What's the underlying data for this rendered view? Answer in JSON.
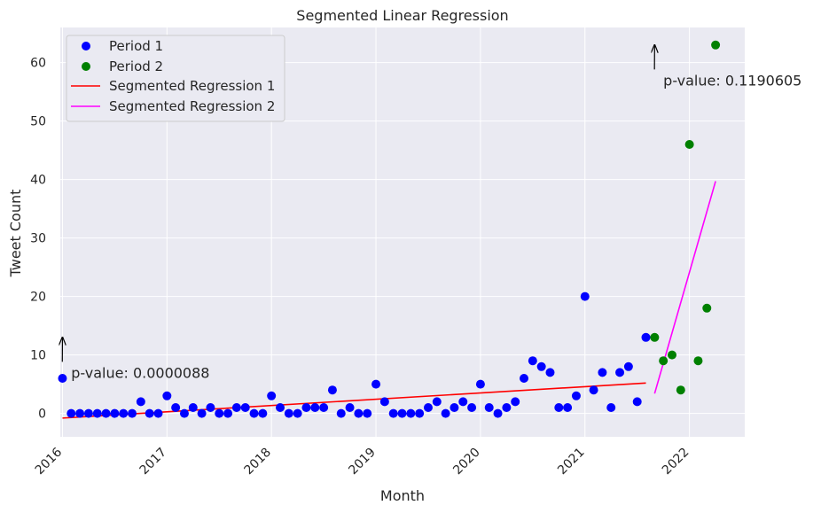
{
  "chart_data": {
    "type": "scatter",
    "title": "Segmented Linear Regression",
    "xlabel": "Month",
    "ylabel": "Tweet Count",
    "xlim": [
      "2015-12",
      "2022-07"
    ],
    "ylim": [
      -4,
      66
    ],
    "x_ticks": [
      "2016",
      "2017",
      "2018",
      "2019",
      "2020",
      "2021",
      "2022"
    ],
    "y_ticks": [
      0,
      10,
      20,
      30,
      40,
      50,
      60
    ],
    "grid": true,
    "legend_position": "top-left",
    "series": [
      {
        "name": "Period 1",
        "kind": "scatter",
        "color": "#0000ff",
        "start": "2016-01",
        "values": [
          6,
          0,
          0,
          0,
          0,
          0,
          0,
          0,
          0,
          2,
          0,
          0,
          3,
          1,
          0,
          1,
          0,
          1,
          0,
          0,
          1,
          1,
          0,
          0,
          3,
          1,
          0,
          0,
          1,
          1,
          1,
          4,
          0,
          1,
          0,
          0,
          5,
          2,
          0,
          0,
          0,
          0,
          1,
          2,
          0,
          1,
          2,
          1,
          5,
          1,
          0,
          1,
          2,
          6,
          9,
          8,
          7,
          1,
          1,
          3,
          20,
          4,
          7,
          1,
          7,
          8,
          2,
          13
        ]
      },
      {
        "name": "Period 2",
        "kind": "scatter",
        "color": "#008000",
        "points": [
          {
            "x": "2021-09",
            "y": 13
          },
          {
            "x": "2021-10",
            "y": 9
          },
          {
            "x": "2021-11",
            "y": 10
          },
          {
            "x": "2021-12",
            "y": 4
          },
          {
            "x": "2022-01",
            "y": 46
          },
          {
            "x": "2022-02",
            "y": 9
          },
          {
            "x": "2022-03",
            "y": 18
          },
          {
            "x": "2022-04",
            "y": 63
          }
        ]
      },
      {
        "name": "Segmented Regression 1",
        "kind": "line",
        "color": "#ff0000",
        "points": [
          {
            "x": "2016-01",
            "y": -0.8
          },
          {
            "x": "2021-08",
            "y": 5.2
          }
        ]
      },
      {
        "name": "Segmented Regression 2",
        "kind": "line",
        "color": "#ff00ff",
        "points": [
          {
            "x": "2021-09",
            "y": 3.4
          },
          {
            "x": "2022-04",
            "y": 39.7
          }
        ]
      }
    ],
    "annotations": [
      {
        "text": "p-value: 0.0000088",
        "arrow_to": {
          "x": "2016-01",
          "y": 13
        },
        "text_at": {
          "x": "2016-02",
          "y": 7
        }
      },
      {
        "text": "p-value: 0.1190605",
        "arrow_to": {
          "x": "2021-09",
          "y": 63
        },
        "text_at": {
          "x": "2021-10",
          "y": 57
        }
      }
    ]
  }
}
